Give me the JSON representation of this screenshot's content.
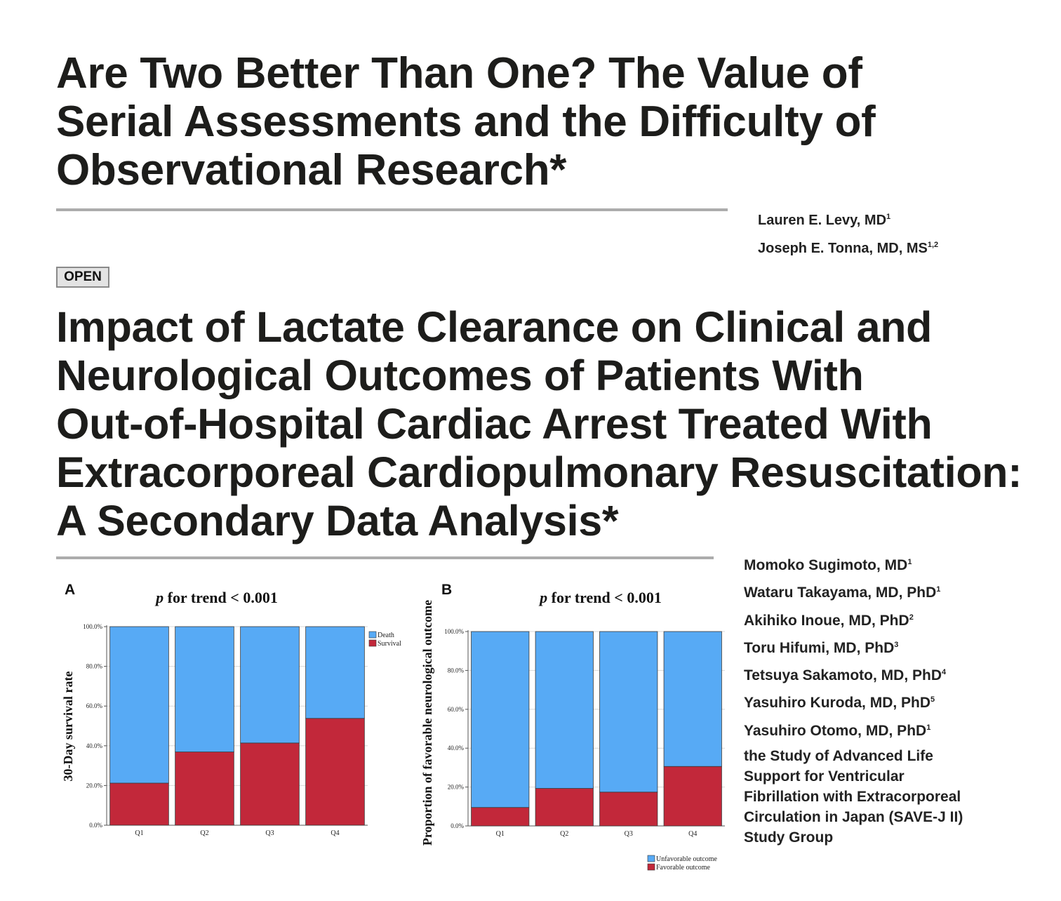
{
  "article1": {
    "title_lines": [
      "Are Two Better Than One? The Value of",
      "Serial Assessments and the Difficulty of",
      "Observational Research*"
    ],
    "authors": [
      {
        "name": "Lauren E. Levy, MD",
        "sup": "1"
      },
      {
        "name": "Joseph E. Tonna, MD, MS",
        "sup": "1,2"
      }
    ]
  },
  "badge": "OPEN",
  "article2": {
    "title_lines": [
      "Impact of Lactate Clearance on Clinical and",
      "Neurological Outcomes of Patients With",
      "Out-of-Hospital Cardiac Arrest Treated With",
      "Extracorporeal Cardiopulmonary Resuscitation:",
      "A Secondary Data Analysis*"
    ],
    "authors": [
      {
        "name": "Momoko Sugimoto, MD",
        "sup": "1"
      },
      {
        "name": "Wataru Takayama, MD, PhD",
        "sup": "1"
      },
      {
        "name": "Akihiko Inoue, MD, PhD",
        "sup": "2"
      },
      {
        "name": "Toru Hifumi, MD, PhD",
        "sup": "3"
      },
      {
        "name": "Tetsuya Sakamoto, MD, PhD",
        "sup": "4"
      },
      {
        "name": "Yasuhiro Kuroda, MD, PhD",
        "sup": "5"
      },
      {
        "name": "Yasuhiro Otomo, MD, PhD",
        "sup": "1"
      }
    ],
    "group_lines": [
      "the Study of Advanced Life",
      "Support for Ventricular",
      "Fibrillation with Extracorporeal",
      "Circulation in Japan (SAVE-J II)",
      "Study Group"
    ]
  },
  "colors": {
    "blue": "#57aaf5",
    "red": "#c2283a"
  },
  "chart_data": [
    {
      "type": "bar",
      "stacked": true,
      "panel": "A",
      "title": "p for trend < 0.001",
      "ylabel": "30-Day survival rate",
      "xlabel": "",
      "categories": [
        "Q1",
        "Q2",
        "Q3",
        "Q4"
      ],
      "series": [
        {
          "name": "Survival",
          "values": [
            21.2,
            36.9,
            41.4,
            53.8
          ],
          "color": "#c2283a"
        },
        {
          "name": "Death",
          "values": [
            78.8,
            63.1,
            58.6,
            46.2
          ],
          "color": "#57aaf5"
        }
      ],
      "ylim": [
        0,
        100
      ],
      "yticks": [
        "0.0%",
        "20.0%",
        "40.0%",
        "60.0%",
        "80.0%",
        "100.0%"
      ],
      "legend": [
        "Death",
        "Survival"
      ],
      "legend_position": "top-right",
      "grid": true
    },
    {
      "type": "bar",
      "stacked": true,
      "panel": "B",
      "title": "p for trend < 0.001",
      "ylabel": "Proportion of favorable neurological outcome",
      "xlabel": "",
      "categories": [
        "Q1",
        "Q2",
        "Q3",
        "Q4"
      ],
      "series": [
        {
          "name": "Favorable outcome",
          "values": [
            9.5,
            19.3,
            17.4,
            30.6
          ],
          "color": "#c2283a"
        },
        {
          "name": "Unfavorable outcome",
          "values": [
            90.5,
            80.7,
            82.6,
            69.4
          ],
          "color": "#57aaf5"
        }
      ],
      "ylim": [
        0,
        100
      ],
      "yticks": [
        "0.0%",
        "20.0%",
        "40.0%",
        "60.0%",
        "80.0%",
        "100.0%"
      ],
      "legend": [
        "Unfavorable outcome",
        "Favorable outcome"
      ],
      "legend_position": "bottom-right",
      "grid": true
    }
  ]
}
